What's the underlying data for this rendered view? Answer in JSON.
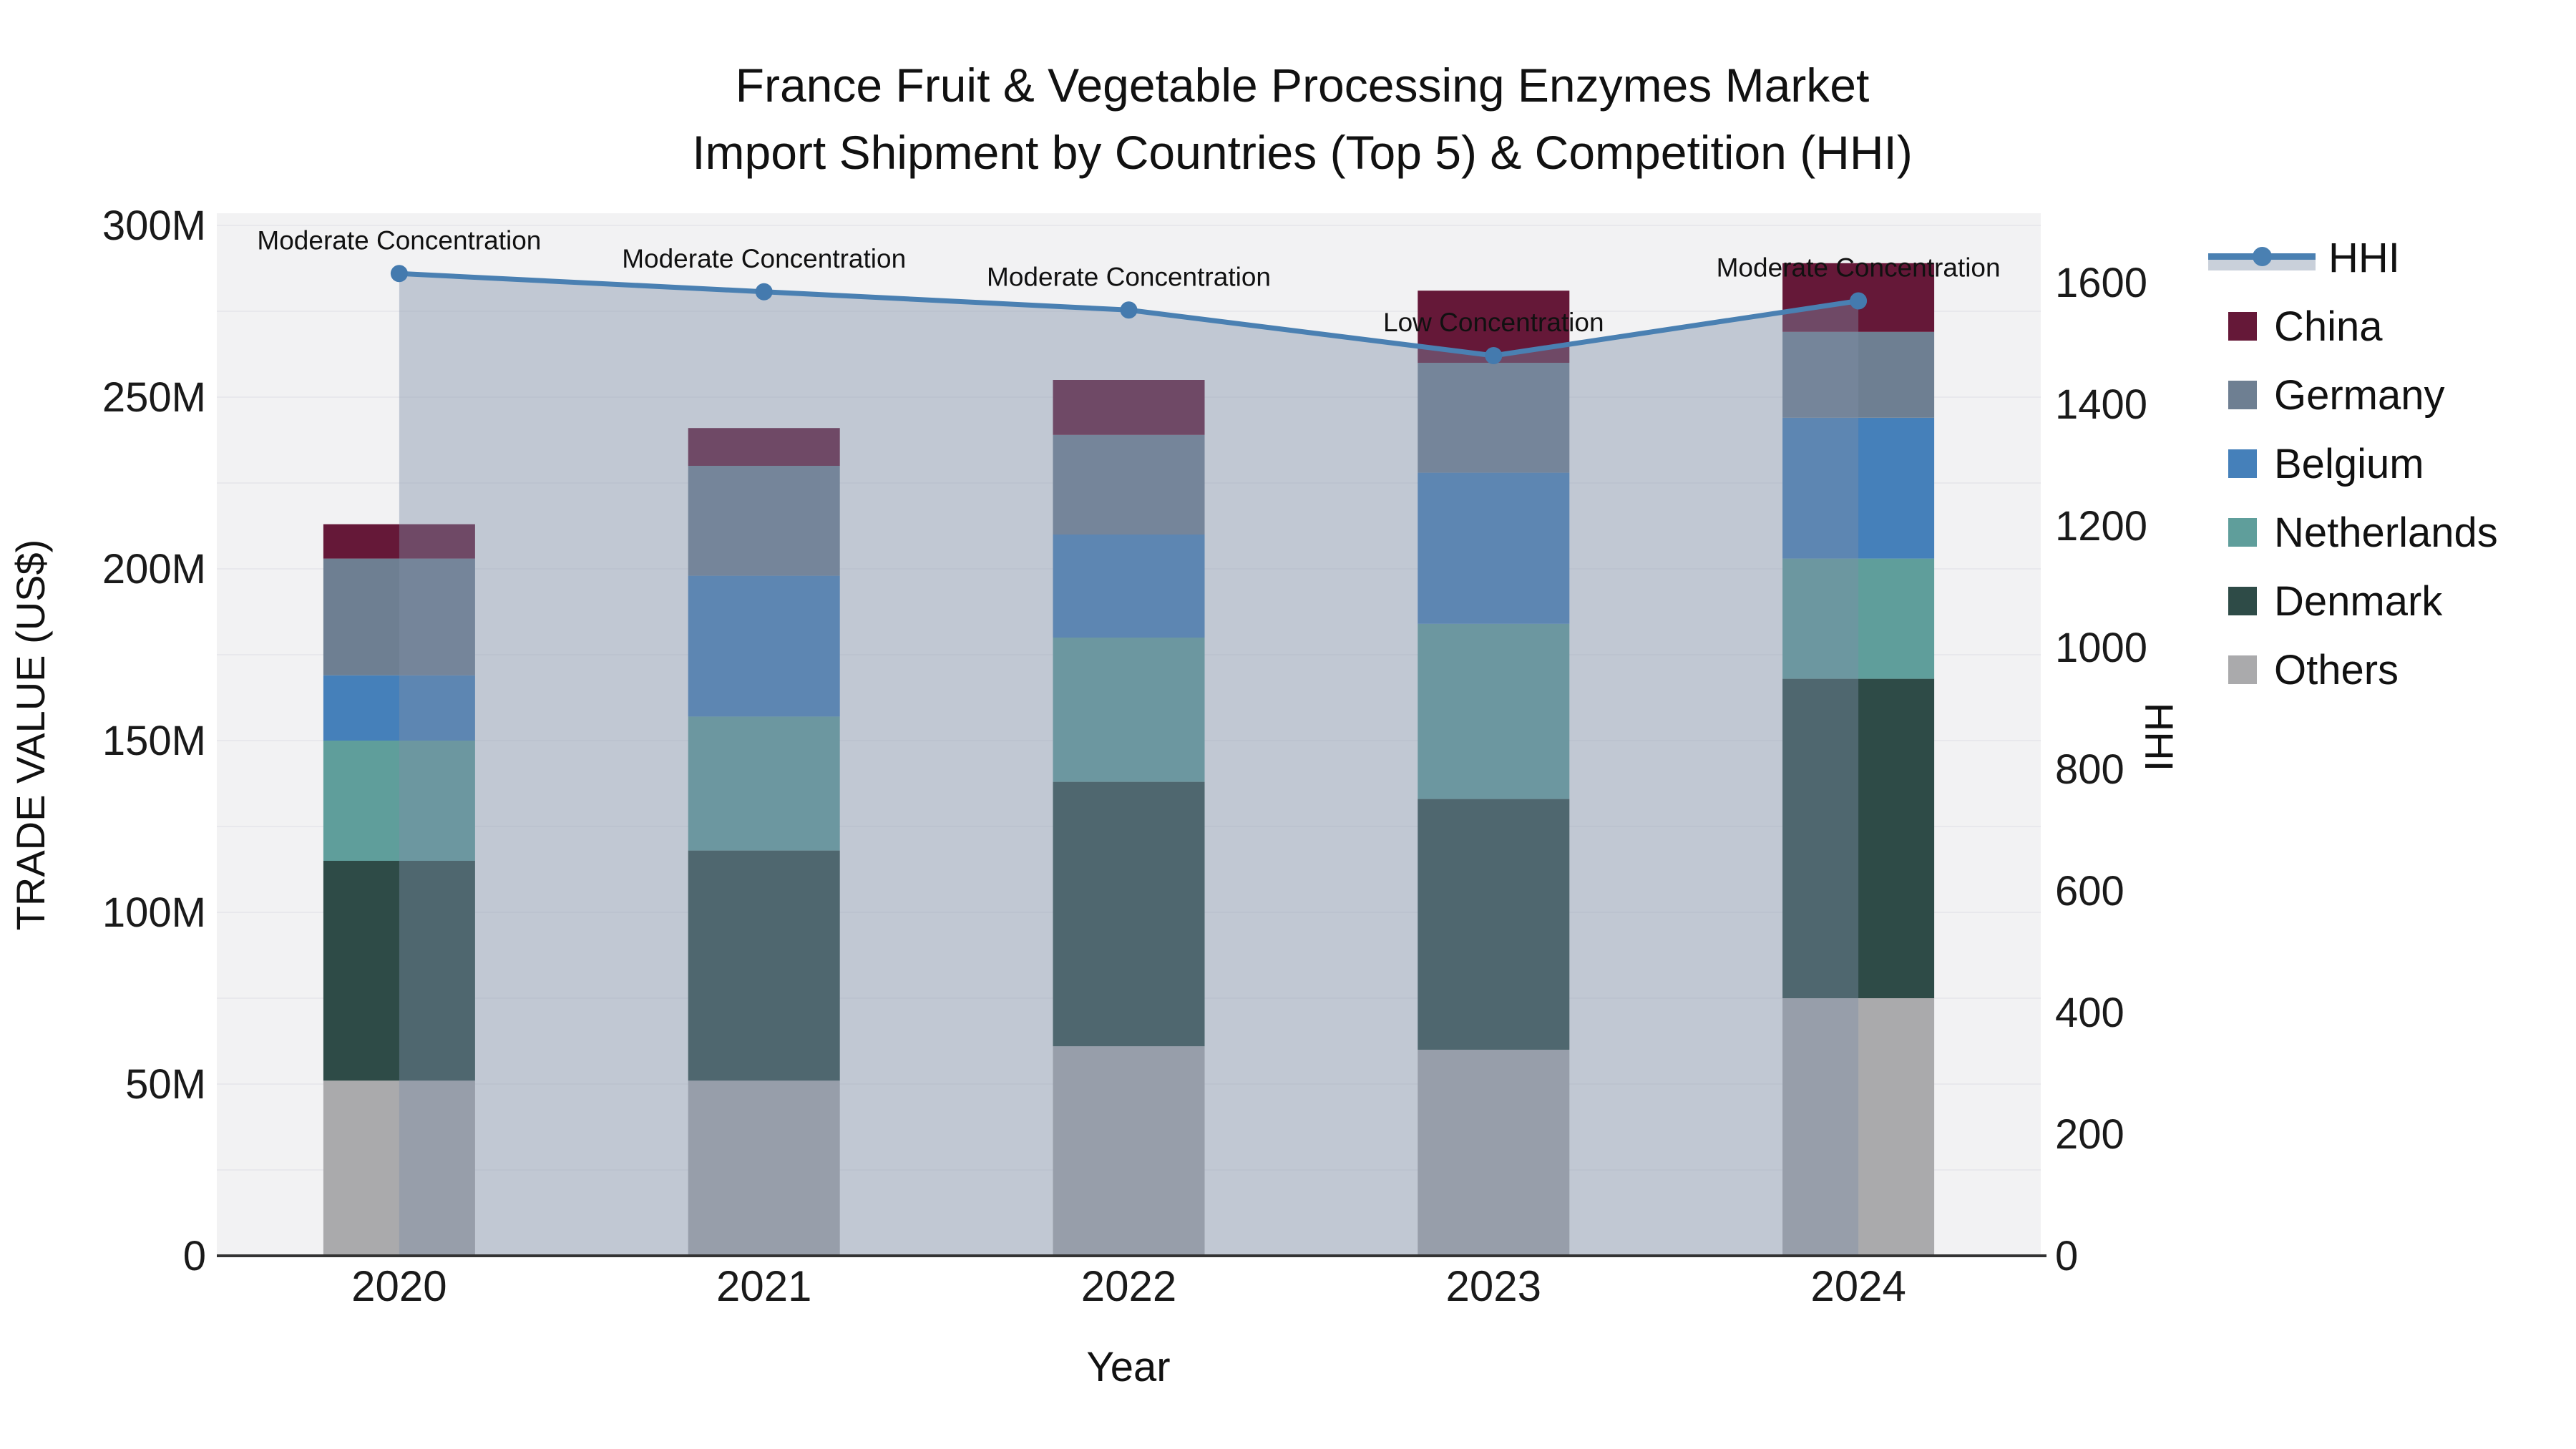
{
  "title": {
    "line1": "France Fruit & Vegetable Processing Enzymes Market",
    "line2": "Import Shipment by Countries (Top 5) & Competition (HHI)"
  },
  "axes": {
    "x": {
      "title": "Year"
    },
    "y_left": {
      "title": "TRADE VALUE (US$)"
    },
    "y_right": {
      "title": "HHI"
    }
  },
  "legend": {
    "items": [
      {
        "label": "HHI",
        "type": "line",
        "color": "#4a80b2",
        "band_color": "#c9d0da"
      },
      {
        "label": "China",
        "type": "swatch",
        "color": "#651838"
      },
      {
        "label": "Germany",
        "type": "swatch",
        "color": "#6e7f92"
      },
      {
        "label": "Belgium",
        "type": "swatch",
        "color": "#4580ba"
      },
      {
        "label": "Netherlands",
        "type": "swatch",
        "color": "#5f9e9b"
      },
      {
        "label": "Denmark",
        "type": "swatch",
        "color": "#2e4b47"
      },
      {
        "label": "Others",
        "type": "swatch",
        "color": "#aaaaac"
      }
    ]
  },
  "chart_data": {
    "type": "combo: stacked-bar + line",
    "title": "France Fruit & Vegetable Processing Enzymes Market — Import Shipment by Countries (Top 5) & Competition (HHI)",
    "categories": [
      "2020",
      "2021",
      "2022",
      "2023",
      "2024"
    ],
    "xlabel": "Year",
    "ylabel_left": "TRADE VALUE (US$)",
    "ylabel_right": "HHI",
    "ylim_left_musd": [
      0,
      300
    ],
    "ylim_right_hhi": [
      0,
      1715
    ],
    "grid": "faint horizontal gridlines every 25M, legend at right, plot background light gray",
    "bar_unit": "US$ millions (axis labeled 0..300M)",
    "stack_order_bottom_to_top": [
      "Others",
      "Denmark",
      "Netherlands",
      "Belgium",
      "Germany",
      "China"
    ],
    "series": [
      {
        "name": "Others",
        "color": "#aaaaac",
        "values_musd": [
          51,
          51,
          61,
          60,
          75
        ]
      },
      {
        "name": "Denmark",
        "color": "#2e4b47",
        "values_musd": [
          64,
          67,
          77,
          73,
          93
        ]
      },
      {
        "name": "Netherlands",
        "color": "#5f9e9b",
        "values_musd": [
          35,
          39,
          42,
          51,
          35
        ]
      },
      {
        "name": "Belgium",
        "color": "#4580ba",
        "values_musd": [
          19,
          41,
          30,
          44,
          41
        ]
      },
      {
        "name": "Germany",
        "color": "#6e7f92",
        "values_musd": [
          34,
          32,
          29,
          32,
          25
        ]
      },
      {
        "name": "China",
        "color": "#651838",
        "values_musd": [
          10,
          11,
          16,
          21,
          20
        ]
      }
    ],
    "bar_totals_musd": [
      213,
      241,
      255,
      281,
      289
    ],
    "line_series": {
      "name": "HHI",
      "axis": "right",
      "color": "#4a80b2",
      "marker_color": "#447aae",
      "area_fill": "rgba(127,143,166,0.42)",
      "values": [
        1615,
        1585,
        1555,
        1480,
        1570
      ]
    },
    "annotations": [
      {
        "x": "2020",
        "text": "Moderate Concentration"
      },
      {
        "x": "2021",
        "text": "Moderate Concentration"
      },
      {
        "x": "2022",
        "text": "Moderate Concentration"
      },
      {
        "x": "2023",
        "text": "Low Concentration"
      },
      {
        "x": "2024",
        "text": "Moderate Concentration"
      }
    ],
    "y_left_ticks": [
      "0",
      "50M",
      "100M",
      "150M",
      "200M",
      "250M",
      "300M"
    ],
    "y_right_ticks": [
      "0",
      "200",
      "400",
      "600",
      "800",
      "1000",
      "1200",
      "1400",
      "1600"
    ]
  },
  "style": {
    "plot_bg": "#f2f2f3",
    "gridline_color": "#e8e8ec",
    "axis_line_color": "#333333",
    "tick_text_color": "#1a1a1a"
  }
}
